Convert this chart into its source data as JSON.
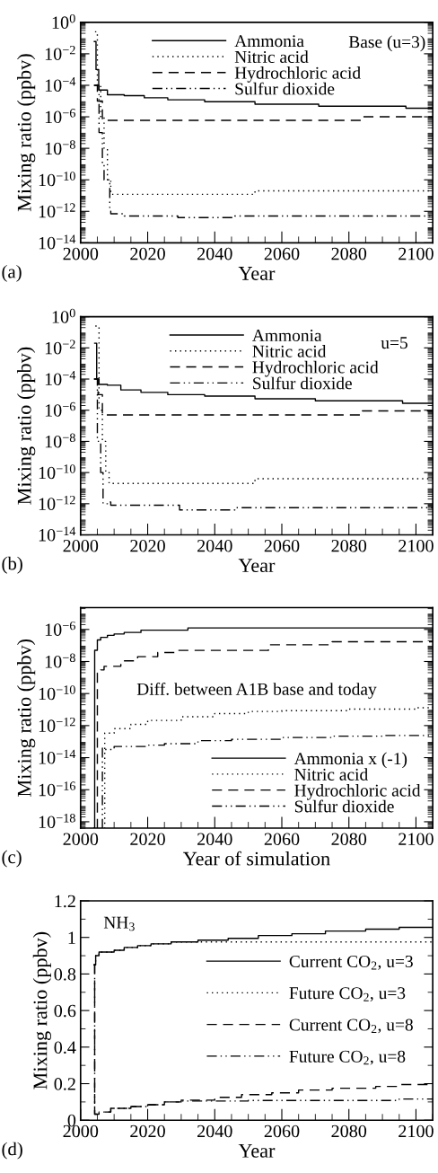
{
  "chart_data": [
    {
      "type": "step",
      "log": true,
      "legend": "top",
      "xlabel": "Year",
      "ylabel": "Mixing ratio (ppbv)",
      "annotations": [
        "Base (u=3)",
        "(a)"
      ],
      "xlim": [
        2000,
        2105
      ],
      "xticks": [
        2000,
        2020,
        2040,
        2060,
        2080,
        2100
      ],
      "ylim": [
        1e-14,
        1
      ],
      "yticks": [
        {
          "value": 1,
          "label": "10$^{0}$"
        },
        {
          "value": 0.01,
          "label": "10$^{−2}$"
        },
        {
          "value": 0.0001,
          "label": "10$^{−4}$"
        },
        {
          "value": 1e-06,
          "label": "10$^{−6}$"
        },
        {
          "value": 1e-08,
          "label": "10$^{−8}$"
        },
        {
          "value": 1e-10,
          "label": "10$^{−10}$"
        },
        {
          "value": 1e-12,
          "label": "10$^{−12}$"
        },
        {
          "value": 1e-14,
          "label": "10$^{−14}$"
        }
      ],
      "series": [
        {
          "name": "Ammonia",
          "color": "#000000",
          "line_style": "solid",
          "x": [
            2004.1,
            2004.6,
            2005.4,
            2008,
            2013,
            2019,
            2026,
            2037,
            2052,
            2071,
            2097,
            2105
          ],
          "values": [
            0.06,
            0.001,
            5e-05,
            2.5e-05,
            2.2e-05,
            1.6e-05,
            1.2e-05,
            9e-06,
            6.3e-06,
            4.7e-06,
            3.5e-06,
            3.5e-06
          ]
        },
        {
          "name": "Nitric acid",
          "color": "#000000",
          "line_style": "dotted",
          "x": [
            2004.3,
            2005,
            2006,
            2007,
            2008,
            2009,
            2052,
            2105
          ],
          "values": [
            0.25,
            0.0001,
            1e-06,
            1e-08,
            1e-10,
            1.2e-11,
            2e-11,
            2e-11
          ]
        },
        {
          "name": "Hydrochloric acid",
          "color": "#000000",
          "line_style": "dashed",
          "x": [
            2004,
            2005,
            2006.5,
            2084,
            2105
          ],
          "values": [
            0.0001,
            1e-05,
            6e-07,
            1e-06,
            1e-06
          ]
        },
        {
          "name": "Sulfur dioxide",
          "color": "#000000",
          "line_style": "dashdotdot",
          "x": [
            2004,
            2005.5,
            2006.5,
            2007,
            2008.7,
            2009,
            2013,
            2029,
            2046,
            2105
          ],
          "values": [
            0.0001,
            1e-07,
            1e-09,
            1e-10,
            1e-12,
            7e-13,
            5e-13,
            4e-13,
            5e-13,
            5e-13
          ]
        }
      ]
    },
    {
      "type": "step",
      "log": true,
      "legend": "top",
      "xlabel": "Year",
      "ylabel": "Mixing ratio (ppbv)",
      "annotations": [
        "u=5",
        "(b)"
      ],
      "xlim": [
        2000,
        2105
      ],
      "xticks": [
        2000,
        2020,
        2040,
        2060,
        2080,
        2100
      ],
      "ylim": [
        1e-14,
        1
      ],
      "yticks": [
        {
          "value": 1,
          "label": "10$^{0}$"
        },
        {
          "value": 0.01,
          "label": "10$^{−2}$"
        },
        {
          "value": 0.0001,
          "label": "10$^{−4}$"
        },
        {
          "value": 1e-06,
          "label": "10$^{−6}$"
        },
        {
          "value": 1e-08,
          "label": "10$^{−8}$"
        },
        {
          "value": 1e-10,
          "label": "10$^{−10}$"
        },
        {
          "value": 1e-12,
          "label": "10$^{−12}$"
        },
        {
          "value": 1e-14,
          "label": "10$^{−14}$"
        }
      ],
      "series": [
        {
          "name": "Ammonia",
          "color": "#000000",
          "line_style": "solid",
          "x": [
            2004.2,
            2004.8,
            2005.5,
            2008,
            2012,
            2018,
            2026,
            2037,
            2052,
            2070,
            2096,
            2105
          ],
          "values": [
            0.02,
            0.0001,
            4.5e-05,
            4e-05,
            2e-05,
            1.4e-05,
            1e-05,
            8e-06,
            5.4e-06,
            4e-06,
            2.8e-06,
            2.8e-06
          ]
        },
        {
          "name": "Nitric acid",
          "color": "#000000",
          "line_style": "dotted",
          "x": [
            2004.4,
            2005.5,
            2006.5,
            2007.5,
            2008.5,
            2052,
            2105
          ],
          "values": [
            0.25,
            1e-06,
            1e-08,
            1e-10,
            2e-11,
            4e-11,
            4e-11
          ]
        },
        {
          "name": "Hydrochloric acid",
          "color": "#000000",
          "line_style": "dashed",
          "x": [
            2004,
            2005.2,
            2006.5,
            2084,
            2105
          ],
          "values": [
            0.0001,
            1e-05,
            5e-07,
            9e-07,
            9e-07
          ]
        },
        {
          "name": "Sulfur dioxide",
          "color": "#000000",
          "line_style": "dashdotdot",
          "x": [
            2004,
            2005,
            2006,
            2006.7,
            2008,
            2009,
            2029.5,
            2046,
            2105
          ],
          "values": [
            0.0001,
            1e-08,
            1e-10,
            1e-12,
            1.3e-12,
            8e-13,
            4e-13,
            5.6e-13,
            5.6e-13
          ]
        }
      ]
    },
    {
      "type": "step",
      "log": true,
      "legend": "bottom right",
      "xlabel": "Year of simulation",
      "ylabel": "Mixing ratio (ppbv)",
      "annotations": [
        "Diff. between A1B base and today",
        "(c)"
      ],
      "xlim": [
        2000,
        2105
      ],
      "xticks": [
        2000,
        2020,
        2040,
        2060,
        2080,
        2100
      ],
      "ylim": [
        4e-19,
        2.3e-05
      ],
      "yticks": [
        {
          "value": 1e-06,
          "label": "10$^{−6}$"
        },
        {
          "value": 1e-08,
          "label": "10$^{−8}$"
        },
        {
          "value": 1e-10,
          "label": "10$^{−10}$"
        },
        {
          "value": 1e-12,
          "label": "10$^{−12}$"
        },
        {
          "value": 1e-14,
          "label": "10$^{−14}$"
        },
        {
          "value": 1e-16,
          "label": "10$^{−16}$"
        },
        {
          "value": 1e-18,
          "label": "10$^{−18}$"
        }
      ],
      "series": [
        {
          "name": "Ammonia x (-1)",
          "color": "#000000",
          "line_style": "solid",
          "x": [
            2004,
            2004.2,
            2005,
            2006,
            2008,
            2010,
            2013,
            2018,
            2032,
            2105
          ],
          "values": [
            4e-19,
            5e-08,
            2.2e-07,
            3.2e-07,
            4.3e-07,
            5.2e-07,
            6.5e-07,
            9e-07,
            1.25e-06,
            1.25e-06
          ]
        },
        {
          "name": "Nitric acid",
          "color": "#000000",
          "line_style": "dotted",
          "x": [
            2007,
            2007.2,
            2010,
            2015,
            2020,
            2030,
            2040,
            2050,
            2060,
            2080,
            2100,
            2105
          ],
          "values": [
            4e-19,
            3.4e-13,
            6.5e-13,
            1.2e-12,
            2.1e-12,
            3.6e-12,
            5.6e-12,
            7.6e-12,
            8.5e-12,
            1.07e-11,
            1.3e-11,
            1.65e-11
          ]
        },
        {
          "name": "Hydrochloric acid",
          "color": "#000000",
          "line_style": "dashed",
          "x": [
            2004.8,
            2005,
            2006,
            2007,
            2012,
            2017,
            2023,
            2029,
            2056,
            2075,
            2105
          ],
          "values": [
            4e-19,
            1.9e-09,
            3e-09,
            5e-09,
            1.1e-08,
            2e-08,
            3.6e-08,
            4.9e-08,
            1.1e-07,
            1.7e-07,
            1.7e-07
          ]
        },
        {
          "name": "Sulfur dioxide",
          "color": "#000000",
          "line_style": "dashdotdot",
          "x": [
            2006.3,
            2006.5,
            2007,
            2010,
            2020,
            2025,
            2035,
            2045,
            2060,
            2075,
            2090,
            2105
          ],
          "values": [
            4e-19,
            3.9e-14,
            3.2e-14,
            5e-14,
            6e-14,
            7.4e-14,
            1.15e-13,
            1.4e-13,
            1.8e-13,
            2.2e-13,
            2.4e-13,
            2.4e-13
          ]
        }
      ]
    },
    {
      "type": "step",
      "legend": "right",
      "xlabel": "Year",
      "ylabel": "Mixing ratio (ppbv)",
      "annotations": [
        "NH$_{3}$",
        "(d)"
      ],
      "xlim": [
        2000,
        2105
      ],
      "xticks": [
        2000,
        2020,
        2040,
        2060,
        2080,
        2100
      ],
      "ylim": [
        0,
        1.2
      ],
      "yticks": [
        0,
        0.2,
        0.4,
        0.6,
        0.8,
        1,
        1.2
      ],
      "series": [
        {
          "name": "Current CO$_{2}$, u=3",
          "color": "#000000",
          "line_style": "solid",
          "x": [
            2004,
            2004.5,
            2005.5,
            2010,
            2013,
            2017,
            2021,
            2027,
            2035,
            2044,
            2053,
            2063,
            2073,
            2085,
            2095,
            2105
          ],
          "values": [
            0.85,
            0.9,
            0.92,
            0.93,
            0.945,
            0.955,
            0.965,
            0.975,
            0.985,
            0.995,
            1.01,
            1.02,
            1.035,
            1.045,
            1.055,
            1.055
          ]
        },
        {
          "name": "Future CO$_{2}$, u=3",
          "color": "#000000",
          "line_style": "dotted",
          "x": [
            2004,
            2004.5,
            2005.5,
            2010,
            2013,
            2017,
            2021,
            2027,
            2105
          ],
          "values": [
            0.85,
            0.9,
            0.92,
            0.93,
            0.945,
            0.955,
            0.965,
            0.975,
            0.975
          ]
        },
        {
          "name": "Current CO$_{2}$, u=8",
          "color": "#000000",
          "line_style": "dashed",
          "x": [
            2004,
            2004.2,
            2005.5,
            2009,
            2015,
            2020,
            2025,
            2030,
            2040,
            2048,
            2057,
            2065,
            2075,
            2088,
            2095,
            2105
          ],
          "values": [
            0.85,
            0.033,
            0.045,
            0.065,
            0.075,
            0.085,
            0.1,
            0.11,
            0.125,
            0.14,
            0.15,
            0.165,
            0.175,
            0.185,
            0.195,
            0.195
          ]
        },
        {
          "name": "Future CO$_{2}$, u=8",
          "color": "#000000",
          "line_style": "dashdotdot",
          "x": [
            2004,
            2004.2,
            2005.5,
            2009,
            2015,
            2020,
            2025,
            2030,
            2050,
            2095,
            2105
          ],
          "values": [
            0.85,
            0.033,
            0.045,
            0.065,
            0.075,
            0.085,
            0.1,
            0.105,
            0.108,
            0.116,
            0.116
          ]
        }
      ]
    }
  ]
}
